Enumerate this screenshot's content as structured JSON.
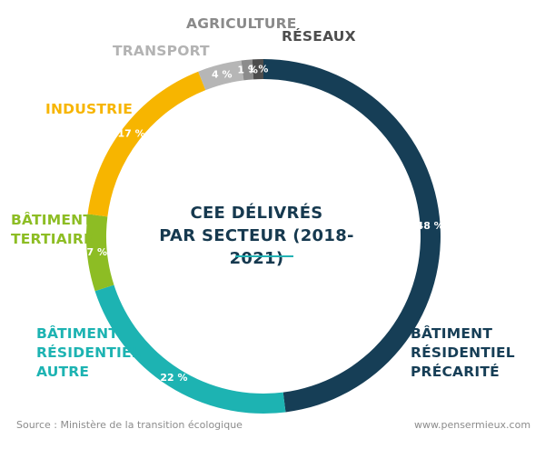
{
  "chart_data": {
    "type": "pie",
    "title": "CEE DÉLIVRÉS PAR SECTEUR (2018-2021)",
    "title_lines": [
      "CEE DÉLIVRÉS",
      "PAR SECTEUR (2018-2021)"
    ],
    "slices": [
      {
        "label": "BÂTIMENT RÉSIDENTIEL PRÉCARITÉ",
        "label_lines": "BÂTIMENT\nRÉSIDENTIEL\nPRÉCARITÉ",
        "value": 48,
        "display": "48 %",
        "color": "#163e56",
        "label_color": "#163e56",
        "pct_color": "#ffffff"
      },
      {
        "label": "BÂTIMENT RÉSIDENTIEL AUTRE",
        "label_lines": "BÂTIMENT\nRÉSIDENTIEL\nAUTRE",
        "value": 22,
        "display": "22 %",
        "color": "#1db3b2",
        "label_color": "#1db3b2",
        "pct_color": "#ffffff"
      },
      {
        "label": "BÂTIMENT TERTIAIRE",
        "label_lines": "BÂTIMENT\nTERTIAIRE",
        "value": 7,
        "display": "7 %",
        "color": "#8dbd24",
        "label_color": "#8dbd24",
        "pct_color": "#ffffff"
      },
      {
        "label": "INDUSTRIE",
        "label_lines": "INDUSTRIE",
        "value": 17,
        "display": "17 %",
        "color": "#f7b500",
        "label_color": "#f7b500",
        "pct_color": "#ffffff"
      },
      {
        "label": "TRANSPORT",
        "label_lines": "TRANSPORT",
        "value": 4,
        "display": "4 %",
        "color": "#b6b6b6",
        "label_color": "#b3b3b3",
        "pct_color": "#ffffff"
      },
      {
        "label": "AGRICULTURE",
        "label_lines": "AGRICULTURE",
        "value": 1,
        "display": "1 %",
        "color": "#8c8c8c",
        "label_color": "#8a8a8a",
        "pct_color": "#ffffff"
      },
      {
        "label": "RÉSEAUX",
        "label_lines": "RÉSEAUX",
        "value": 1,
        "display": "1 %",
        "color": "#4d4d4d",
        "label_color": "#4d4d4d",
        "pct_color": "#ffffff"
      }
    ],
    "legend": "none"
  },
  "footer": {
    "source": "Source : Ministère de la transition écologique",
    "site": "www.pensermieux.com"
  }
}
